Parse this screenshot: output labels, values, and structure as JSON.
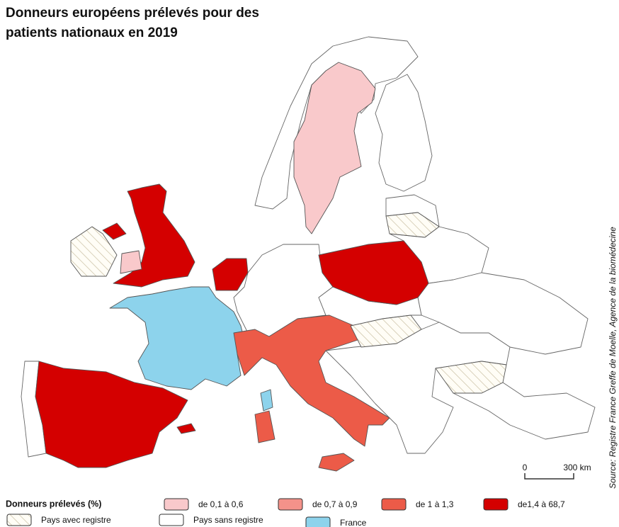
{
  "title": [
    "Donneurs européens prélevés pour des",
    "patients nationaux en 2019"
  ],
  "legend": {
    "title": "Donneurs prélevés (%)",
    "items": [
      {
        "label": "de 0,1 à 0,6",
        "color": "#f9c9cb"
      },
      {
        "label": "de 0,7 à 0,9",
        "color": "#f4928a"
      },
      {
        "label": "de 1 à 1,3",
        "color": "#ec5b48"
      },
      {
        "label": "de1,4 à 68,7",
        "color": "#d40000"
      },
      {
        "label": "Pays avec registre",
        "pattern": "hatch"
      },
      {
        "label": "Pays sans registre",
        "color": "#ffffff"
      },
      {
        "label": "France",
        "color": "#8dd3ec"
      }
    ]
  },
  "scale": [
    "0",
    "300 km"
  ],
  "source": "Source: Registre France Greffe de Moelle, Agence de la biomédecine"
}
